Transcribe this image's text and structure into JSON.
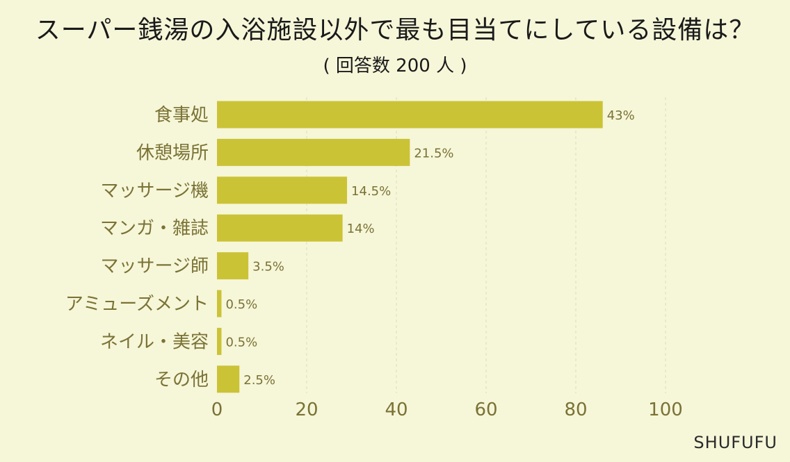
{
  "title": "スーパー銭湯の入浴施設以外で最も目当てにしている設備は？",
  "subtitle": "( 回答数 200 人 )",
  "brand": "SHUFUFU",
  "colors": {
    "bar": "#cbc336",
    "background": "#f6f6d9",
    "text": "#7a7235",
    "grid": "#dcdcc4"
  },
  "chart_data": {
    "type": "bar",
    "orientation": "horizontal",
    "categories": [
      "食事処",
      "休憩場所",
      "マッサージ機",
      "マンガ・雑誌",
      "マッサージ師",
      "アミューズメント",
      "ネイル・美容",
      "その他"
    ],
    "values": [
      86,
      43,
      29,
      28,
      7,
      1,
      1,
      5
    ],
    "value_labels": [
      "43%",
      "21.5%",
      "14.5%",
      "14%",
      "3.5%",
      "0.5%",
      "0.5%",
      "2.5%"
    ],
    "xlim": [
      0,
      100
    ],
    "xticks": [
      0,
      20,
      40,
      60,
      80,
      100
    ],
    "grid": true
  }
}
